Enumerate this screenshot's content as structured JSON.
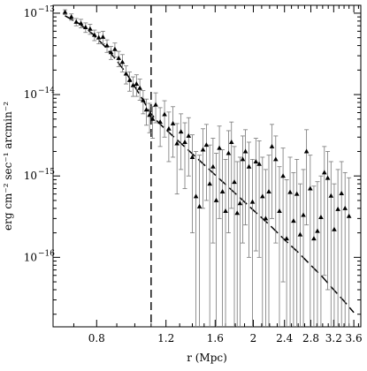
{
  "chart_data": {
    "type": "scatter",
    "title": "",
    "xlabel": "r (Mpc)",
    "ylabel": "erg cm⁻² sec⁻¹ arcmin⁻²",
    "x_scale": "log",
    "y_scale": "log",
    "xlim": [
      0.62,
      3.75
    ],
    "ylim": [
      1.4e-17,
      1.25e-13
    ],
    "x_ticks": [
      {
        "value": 0.8,
        "label": "0.8"
      },
      {
        "value": 1.2,
        "label": "1.2"
      },
      {
        "value": 1.6,
        "label": "1.6"
      },
      {
        "value": 2.0,
        "label": "2"
      },
      {
        "value": 2.4,
        "label": "2.4"
      },
      {
        "value": 2.8,
        "label": "2.8"
      },
      {
        "value": 3.2,
        "label": "3.2"
      },
      {
        "value": 3.6,
        "label": "3.6"
      }
    ],
    "y_ticks": [
      {
        "value": 1e-13,
        "base": "10",
        "exp": "−13"
      },
      {
        "value": 1e-14,
        "base": "10",
        "exp": "−14"
      },
      {
        "value": 1e-15,
        "base": "10",
        "exp": "−15"
      },
      {
        "value": 1e-16,
        "base": "10",
        "exp": "−16"
      }
    ],
    "vertical_line_x": 1.1,
    "model_curve": {
      "style": "dashed",
      "x": [
        0.665,
        0.72,
        0.78,
        0.84,
        0.9,
        0.95,
        1.0,
        1.05,
        1.1,
        1.15,
        1.2,
        1.3,
        1.45,
        1.6,
        1.8,
        2.0,
        2.2,
        2.4,
        2.6,
        2.8,
        3.0,
        3.2,
        3.4,
        3.6
      ],
      "y": [
        9.3e-14,
        7.5e-14,
        5.6e-14,
        3.9e-14,
        2.6e-14,
        1.85e-14,
        1.25e-14,
        8.5e-15,
        5.8e-15,
        4.5e-15,
        3.7e-15,
        2.6e-15,
        1.6e-15,
        1.03e-15,
        6.1e-16,
        3.8e-16,
        2.5e-16,
        1.65e-16,
        1.15e-16,
        8e-17,
        5.7e-17,
        4e-17,
        2.9e-17,
        2.1e-17
      ]
    },
    "series": [
      {
        "marker": "filled-triangle",
        "x": [
          0.665,
          0.69,
          0.71,
          0.73,
          0.75,
          0.77,
          0.79,
          0.81,
          0.83,
          0.85,
          0.87,
          0.89,
          0.91,
          0.93,
          0.95,
          0.97,
          0.99,
          1.01,
          1.03,
          1.05,
          1.07,
          1.09,
          1.11,
          1.13,
          1.16,
          1.19,
          1.22,
          1.25,
          1.28,
          1.31,
          1.34,
          1.37,
          1.4,
          1.43,
          1.46,
          1.49,
          1.52,
          1.55,
          1.58,
          1.61,
          1.64,
          1.67,
          1.7,
          1.73,
          1.76,
          1.79,
          1.82,
          1.85,
          1.88,
          1.91,
          1.95,
          1.99,
          2.03,
          2.07,
          2.11,
          2.15,
          2.19,
          2.23,
          2.28,
          2.33,
          2.38,
          2.43,
          2.48,
          2.53,
          2.58,
          2.63,
          2.68,
          2.73,
          2.79,
          2.85,
          2.91,
          2.97,
          3.03,
          3.09,
          3.15,
          3.21,
          3.28,
          3.35,
          3.42,
          3.5
        ],
        "y": [
          1.03e-13,
          9e-14,
          7.8e-14,
          7.5e-14,
          6.7e-14,
          6.4e-14,
          5.4e-14,
          5e-14,
          5.1e-14,
          4e-14,
          3.3e-14,
          3.6e-14,
          2.8e-14,
          2.5e-14,
          1.8e-14,
          1.5e-14,
          1.3e-14,
          1.35e-14,
          1.2e-14,
          8.5e-15,
          6.5e-15,
          5.6e-15,
          5e-15,
          7.5e-15,
          4.6e-15,
          5.7e-15,
          3.8e-15,
          4.4e-15,
          2.5e-15,
          3.5e-15,
          2.6e-15,
          3.1e-15,
          1.7e-15,
          5.6e-16,
          4.2e-16,
          2.1e-15,
          2.4e-15,
          8e-16,
          1.3e-15,
          5e-16,
          2.2e-15,
          6.4e-16,
          3.7e-16,
          1.9e-15,
          2.6e-15,
          8.4e-16,
          3.5e-16,
          4.6e-16,
          1.6e-15,
          2e-15,
          1.3e-15,
          4.8e-16,
          1.5e-15,
          1.4e-15,
          5.6e-16,
          3e-16,
          6.4e-16,
          2.3e-15,
          1.6e-15,
          3.7e-16,
          1e-15,
          1.7e-16,
          6.3e-16,
          2.8e-16,
          6e-16,
          1.9e-16,
          3.3e-16,
          2e-15,
          7e-16,
          1.7e-16,
          2.1e-16,
          3.1e-16,
          1.1e-15,
          9.4e-16,
          5.7e-16,
          2.2e-16,
          3.9e-16,
          6.1e-16,
          4e-16,
          3.2e-16
        ],
        "err_low": [
          9.6e-14,
          8.2e-14,
          7e-14,
          6.6e-14,
          5.8e-14,
          5.5e-14,
          4.6e-14,
          4.2e-14,
          4.2e-14,
          3.3e-14,
          2.7e-14,
          2.9e-14,
          2.2e-14,
          1.9e-14,
          1.35e-14,
          1.1e-14,
          9.5e-15,
          9.5e-15,
          8.5e-15,
          5.8e-15,
          4.2e-15,
          3.4e-15,
          2.9e-15,
          4.5e-15,
          2.3e-15,
          3e-15,
          1.5e-15,
          1.7e-15,
          6e-16,
          1.2e-15,
          7e-16,
          1e-15,
          2e-16,
          1.4e-17,
          1.4e-17,
          4e-16,
          5e-16,
          1.4e-17,
          1.5e-16,
          1.4e-17,
          3e-16,
          1.4e-17,
          1.4e-17,
          2e-16,
          4e-16,
          1.4e-17,
          1.4e-17,
          1.4e-17,
          1.5e-16,
          2.5e-16,
          1e-16,
          1.4e-17,
          1.2e-16,
          1e-16,
          1.4e-17,
          1.4e-17,
          1.4e-17,
          3e-16,
          1.5e-16,
          1.4e-17,
          5e-17,
          1.4e-17,
          1.4e-17,
          1.4e-17,
          1.4e-17,
          1.4e-17,
          1.4e-17,
          2.5e-16,
          1.4e-17,
          1.4e-17,
          1.4e-17,
          1.4e-17,
          6e-17,
          4e-17,
          1.4e-17,
          1.4e-17,
          1.4e-17,
          1.4e-17,
          1.4e-17,
          1.4e-17
        ],
        "err_high": [
          1.1e-13,
          9.8e-14,
          8.6e-14,
          8.4e-14,
          7.6e-14,
          7.3e-14,
          6.2e-14,
          5.8e-14,
          6e-14,
          4.7e-14,
          3.9e-14,
          4.3e-14,
          3.4e-14,
          3.1e-14,
          2.25e-14,
          1.9e-14,
          1.65e-14,
          1.75e-14,
          1.55e-14,
          1.12e-14,
          8.8e-15,
          7.8e-15,
          7.1e-15,
          1.05e-14,
          6.9e-15,
          8.4e-15,
          6.1e-15,
          7.1e-15,
          4.4e-15,
          5.8e-15,
          4.5e-15,
          5.2e-15,
          3.2e-15,
          2e-15,
          1.8e-15,
          3.8e-15,
          4.3e-15,
          2.4e-15,
          2.9e-15,
          1.9e-15,
          4.1e-15,
          2.1e-15,
          1.6e-15,
          3.6e-15,
          4.6e-15,
          2.3e-15,
          1.5e-15,
          1.7e-15,
          3.1e-15,
          3.7e-15,
          2.6e-15,
          1.6e-15,
          2.9e-15,
          2.7e-15,
          1.7e-15,
          1.2e-15,
          1.8e-15,
          4.3e-15,
          3.1e-15,
          1.3e-15,
          2.2e-15,
          9e-16,
          1.7e-15,
          1.1e-15,
          1.6e-15,
          8e-16,
          1.2e-15,
          3.7e-15,
          1.8e-15,
          7.5e-16,
          8.5e-16,
          1e-15,
          2.3e-15,
          2e-15,
          1.5e-15,
          8e-16,
          1.2e-15,
          1.5e-15,
          1.1e-15,
          9.5e-16
        ]
      }
    ]
  }
}
